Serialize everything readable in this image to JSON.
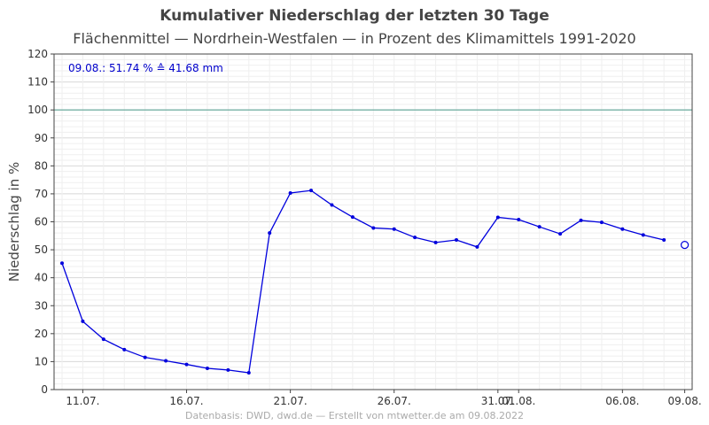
{
  "chart_data": {
    "type": "line",
    "title": "Kumulativer Niederschlag der letzten 30 Tage",
    "subtitle": "Flächenmittel — Nordrhein-Westfalen — in Prozent des Klimamittels 1991-2020",
    "xlabel": "",
    "ylabel": "Niederschlag in %",
    "ylim": [
      0,
      120
    ],
    "ytick_step": 10,
    "yticks": [
      0,
      10,
      20,
      30,
      40,
      50,
      60,
      70,
      80,
      90,
      100,
      110,
      120
    ],
    "x_tick_labels": [
      "11.07.",
      "16.07.",
      "21.07.",
      "26.07.",
      "31.07.",
      "01.08.",
      "06.08.",
      "09.08."
    ],
    "grid": true,
    "reference_line": 100,
    "annotation": "09.08.:  51.74 %  ≙  41.68 mm",
    "series": [
      {
        "color": "#0000dd",
        "x": [
          "10.07.",
          "11.07.",
          "12.07.",
          "13.07.",
          "14.07.",
          "15.07.",
          "16.07.",
          "17.07.",
          "18.07.",
          "19.07.",
          "20.07.",
          "21.07.",
          "22.07.",
          "23.07.",
          "24.07.",
          "25.07.",
          "26.07.",
          "27.07.",
          "28.07.",
          "29.07.",
          "30.07.",
          "31.07.",
          "01.08.",
          "02.08.",
          "03.08.",
          "04.08.",
          "05.08.",
          "06.08.",
          "07.08.",
          "08.08."
        ],
        "values": [
          45.2,
          24.4,
          18,
          14.3,
          11.5,
          10.3,
          9,
          7.6,
          7,
          6,
          56,
          70.3,
          71.2,
          66,
          61.7,
          57.8,
          57.4,
          54.4,
          52.6,
          53.5,
          51,
          61.6,
          60.8,
          58.2,
          55.7,
          60.5,
          59.8,
          57.4,
          55.3,
          53.5
        ]
      }
    ],
    "current": {
      "x": "09.08.",
      "value": 51.74,
      "color": "#0000dd"
    },
    "colors": {
      "line": "#0000dd",
      "reference": "#4a9a8a",
      "grid": "#e8e8e8",
      "frame": "#444444"
    }
  },
  "footer": "Datenbasis: DWD, dwd.de — Erstellt von mtwetter.de am 09.08.2022"
}
